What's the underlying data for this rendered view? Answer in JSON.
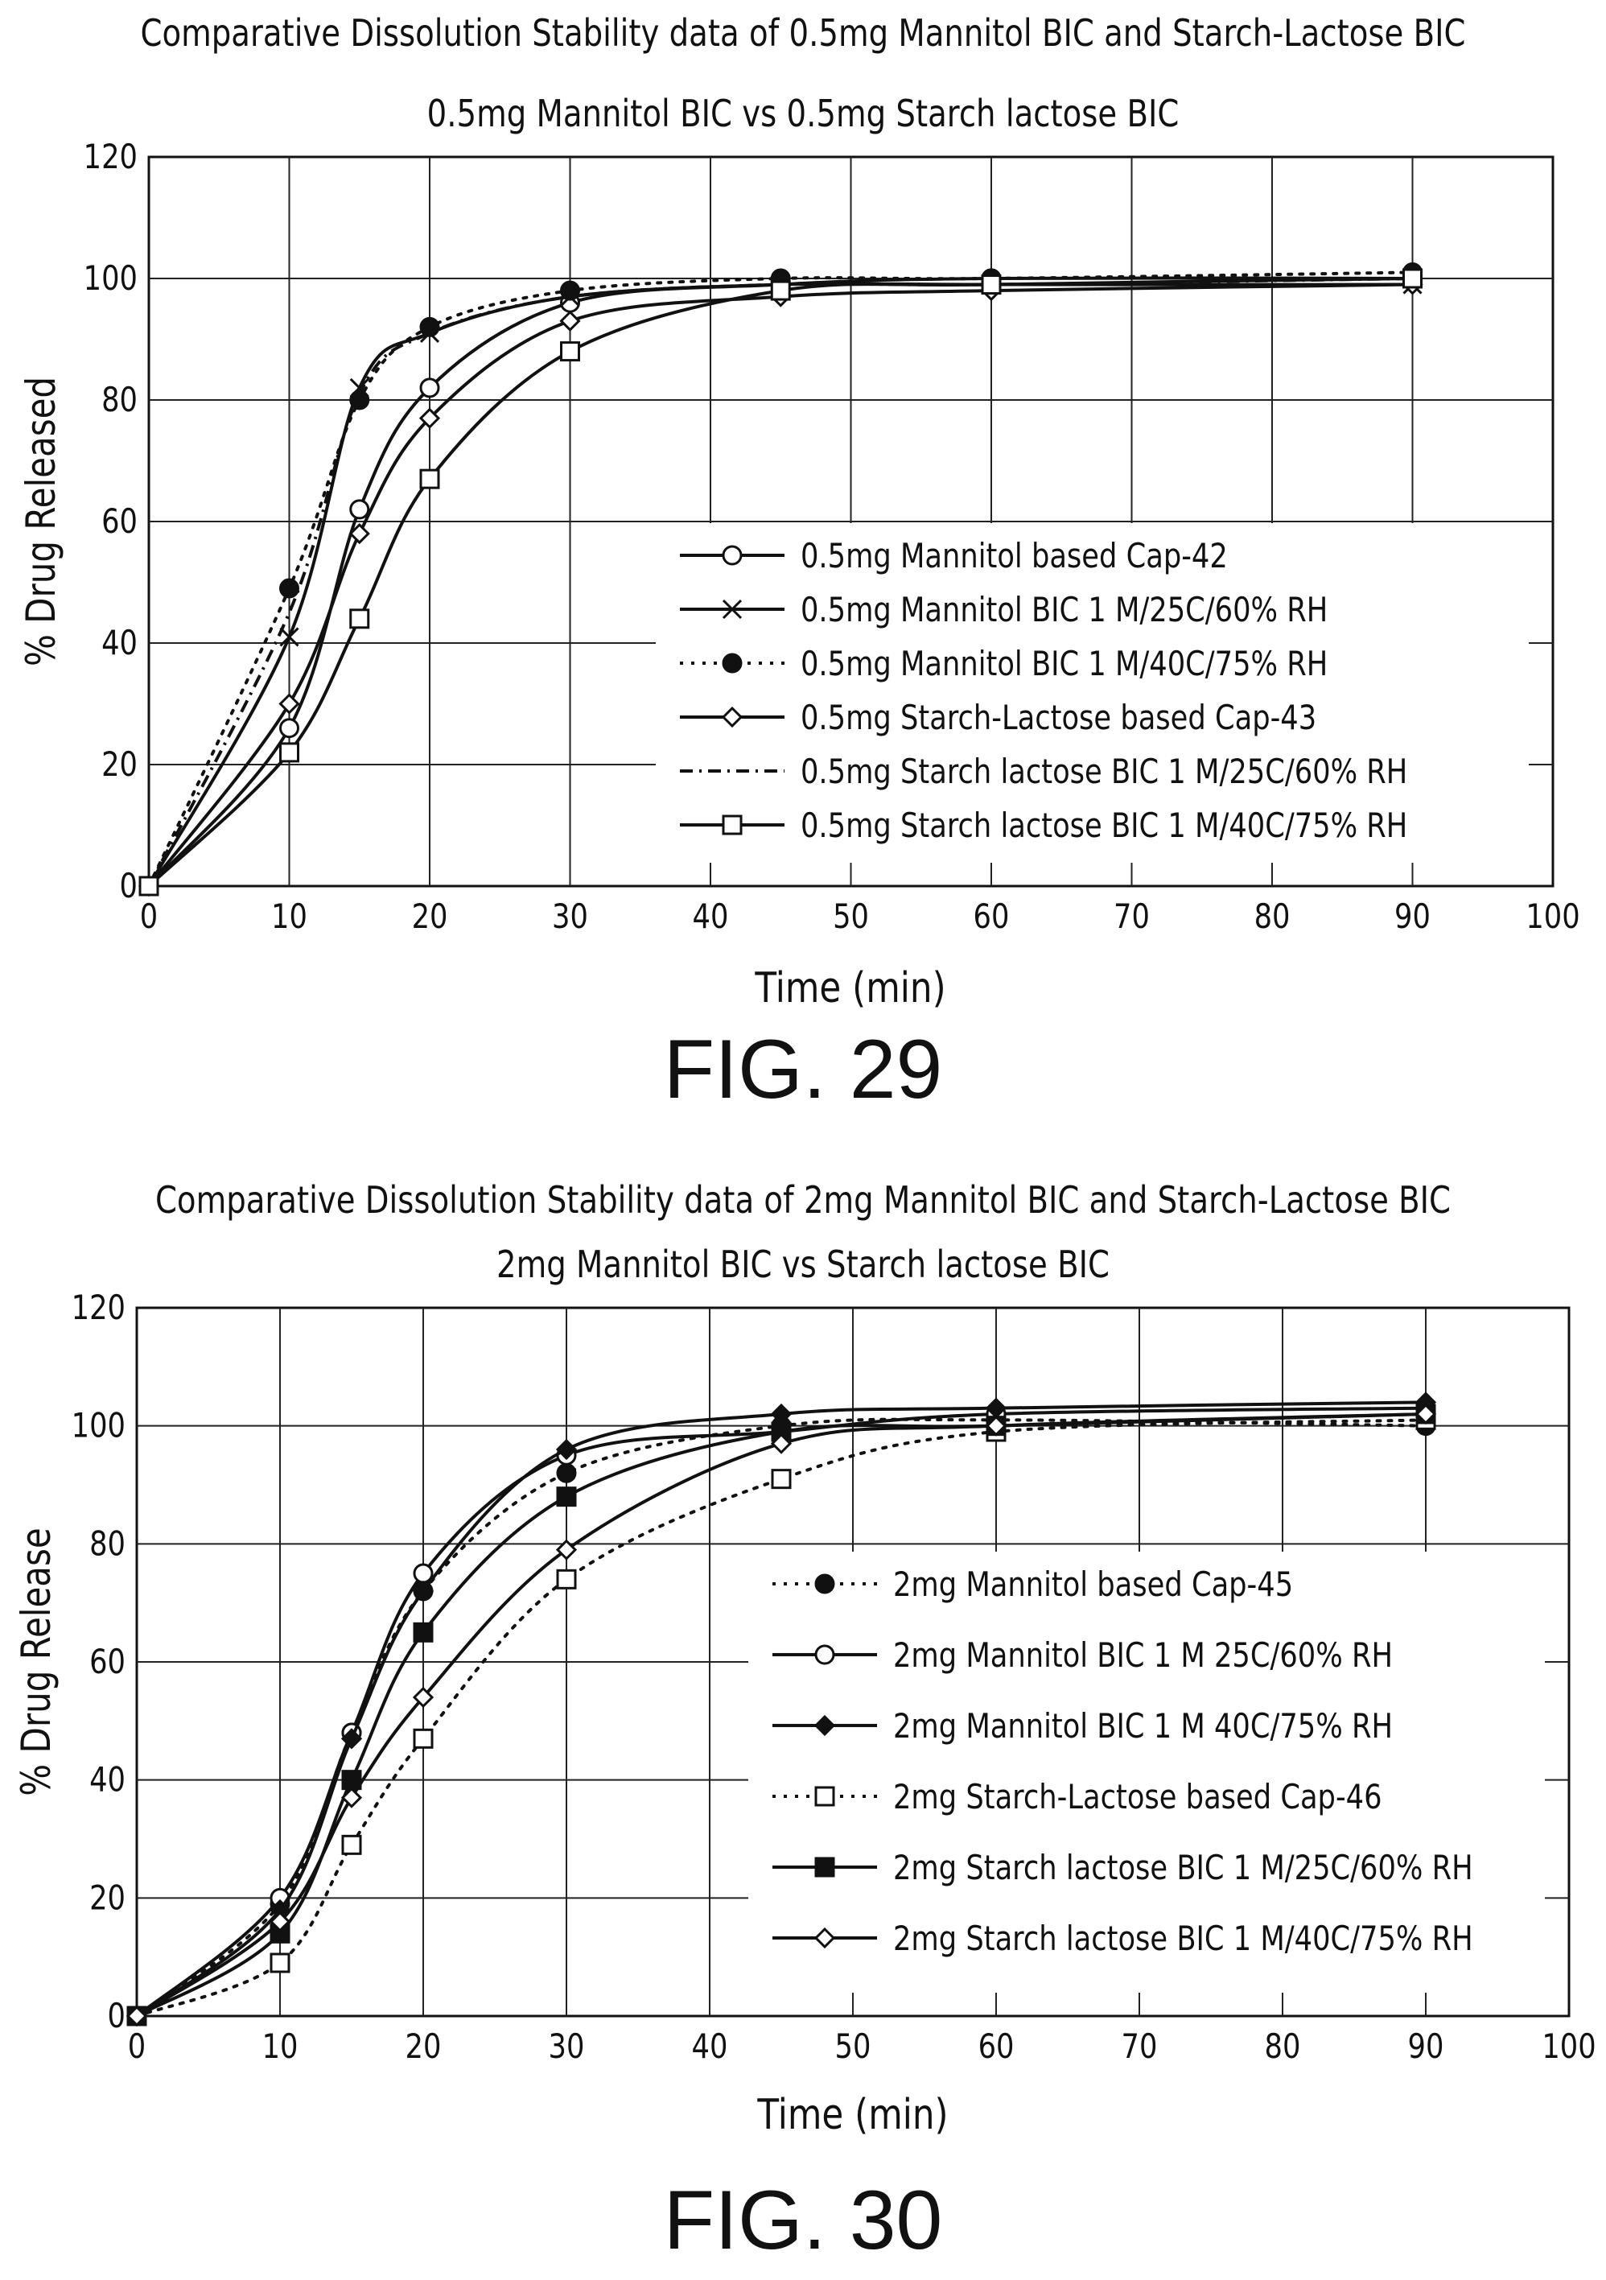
{
  "chart_data": [
    {
      "type": "line",
      "figure_label": "FIG. 29",
      "title": "Comparative Dissolution Stability data of 0.5mg Mannitol BIC and Starch-Lactose BIC",
      "subtitle": "0.5mg Mannitol BIC vs 0.5mg Starch lactose BIC",
      "xlabel": "Time (min)",
      "ylabel": "% Drug Released",
      "xlim": [
        0,
        100
      ],
      "ylim": [
        0,
        120
      ],
      "xticks": [
        "0",
        "10",
        "20",
        "30",
        "40",
        "50",
        "60",
        "70",
        "80",
        "90",
        "100"
      ],
      "yticks": [
        "0",
        "20",
        "40",
        "60",
        "80",
        "100",
        "120"
      ],
      "grid": true,
      "legend_position": "lower-right",
      "series": [
        {
          "name": "0.5mg Mannitol based Cap-42",
          "marker": "open-circle",
          "dash": "solid",
          "x": [
            0,
            10,
            15,
            20,
            30,
            45,
            60,
            90
          ],
          "y": [
            0,
            26,
            62,
            82,
            96,
            99,
            100,
            100
          ]
        },
        {
          "name": "0.5mg Mannitol BIC 1 M/25C/60% RH",
          "marker": "x",
          "dash": "solid",
          "x": [
            0,
            10,
            15,
            20,
            30,
            45,
            60,
            90
          ],
          "y": [
            0,
            41,
            82,
            91,
            97,
            99,
            99,
            99
          ]
        },
        {
          "name": "0.5mg Mannitol BIC 1 M/40C/75% RH",
          "marker": "filled-circle",
          "dash": "dotted",
          "x": [
            0,
            10,
            15,
            20,
            30,
            45,
            60,
            90
          ],
          "y": [
            0,
            49,
            80,
            92,
            98,
            100,
            100,
            101
          ]
        },
        {
          "name": "0.5mg Starch-Lactose based Cap-43",
          "marker": "open-diamond",
          "dash": "solid",
          "x": [
            0,
            10,
            15,
            20,
            30,
            45,
            60,
            90
          ],
          "y": [
            0,
            30,
            58,
            77,
            93,
            97,
            98,
            99
          ]
        },
        {
          "name": "0.5mg Starch lactose BIC 1 M/25C/60% RH",
          "marker": "none",
          "dash": "dash-dot",
          "x": [
            0,
            10,
            15,
            20,
            30,
            45,
            60,
            90
          ],
          "y": [
            0,
            45,
            81,
            91,
            97,
            99,
            99,
            100
          ]
        },
        {
          "name": "0.5mg Starch lactose BIC 1 M/40C/75% RH",
          "marker": "open-square",
          "dash": "solid",
          "x": [
            0,
            10,
            15,
            20,
            30,
            45,
            60,
            90
          ],
          "y": [
            0,
            22,
            44,
            67,
            88,
            98,
            99,
            100
          ]
        }
      ]
    },
    {
      "type": "line",
      "figure_label": "FIG. 30",
      "title": "Comparative Dissolution Stability data of 2mg Mannitol BIC and Starch-Lactose BIC",
      "subtitle": "2mg Mannitol BIC vs Starch lactose BIC",
      "xlabel": "Time (min)",
      "ylabel": "% Drug Release",
      "xlim": [
        0,
        100
      ],
      "ylim": [
        0,
        120
      ],
      "xticks": [
        "0",
        "10",
        "20",
        "30",
        "40",
        "50",
        "60",
        "70",
        "80",
        "90",
        "100"
      ],
      "yticks": [
        "0",
        "20",
        "40",
        "60",
        "80",
        "100",
        "120"
      ],
      "grid": true,
      "legend_position": "lower-right",
      "series": [
        {
          "name": "2mg Mannitol based Cap-45",
          "marker": "filled-circle",
          "dash": "dotted",
          "x": [
            0,
            10,
            15,
            20,
            30,
            45,
            60,
            90
          ],
          "y": [
            0,
            19,
            48,
            72,
            92,
            100,
            101,
            100
          ]
        },
        {
          "name": "2mg Mannitol BIC 1 M 25C/60% RH",
          "marker": "open-circle",
          "dash": "solid",
          "x": [
            0,
            10,
            15,
            20,
            30,
            45,
            60,
            90
          ],
          "y": [
            0,
            20,
            48,
            75,
            95,
            99,
            102,
            103
          ]
        },
        {
          "name": "2mg Mannitol BIC 1 M 40C/75% RH",
          "marker": "filled-diamond",
          "dash": "solid",
          "x": [
            0,
            10,
            15,
            20,
            30,
            45,
            60,
            90
          ],
          "y": [
            0,
            18,
            47,
            72,
            96,
            102,
            103,
            104
          ]
        },
        {
          "name": "2mg Starch-Lactose based Cap-46",
          "marker": "open-square",
          "dash": "dotted",
          "x": [
            0,
            10,
            15,
            20,
            30,
            45,
            60,
            90
          ],
          "y": [
            0,
            9,
            29,
            47,
            74,
            91,
            99,
            101
          ]
        },
        {
          "name": "2mg Starch lactose BIC 1 M/25C/60% RH",
          "marker": "filled-square",
          "dash": "solid",
          "x": [
            0,
            10,
            15,
            20,
            30,
            45,
            60,
            90
          ],
          "y": [
            0,
            14,
            40,
            65,
            88,
            99,
            100,
            102
          ]
        },
        {
          "name": "2mg Starch lactose BIC 1 M/40C/75% RH",
          "marker": "open-diamond",
          "dash": "solid",
          "x": [
            0,
            10,
            15,
            20,
            30,
            45,
            60,
            90
          ],
          "y": [
            0,
            16,
            37,
            54,
            79,
            97,
            100,
            102
          ]
        }
      ]
    }
  ]
}
